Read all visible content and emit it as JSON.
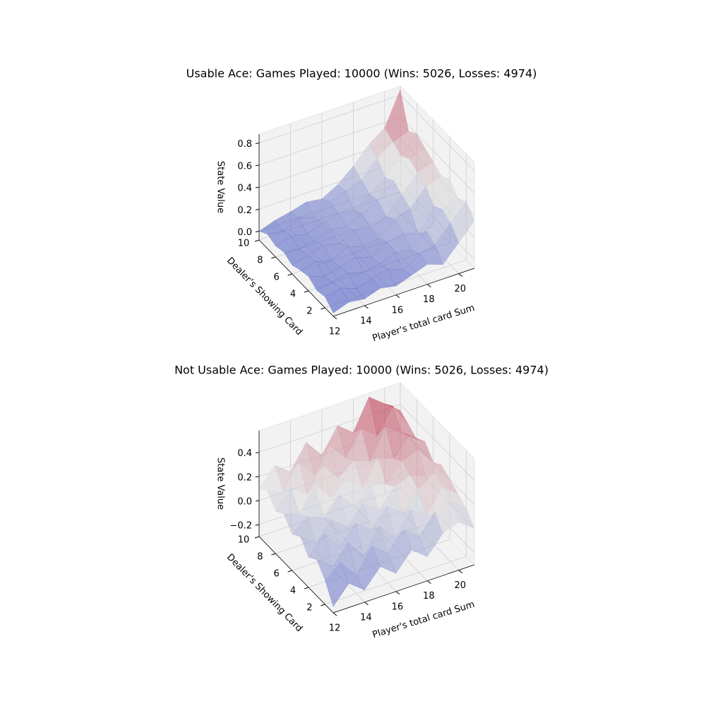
{
  "chart_data": [
    {
      "type": "surface",
      "title": "Usable Ace: Games Played: 10000 (Wins: 5026, Losses: 4974)",
      "xlabel": "Player's total card Sum",
      "ylabel": "Dealer's Showing Card",
      "zlabel": "State Value",
      "x": [
        12,
        13,
        14,
        15,
        16,
        17,
        18,
        19,
        20,
        21
      ],
      "y": [
        1,
        2,
        3,
        4,
        5,
        6,
        7,
        8,
        9,
        10
      ],
      "z": [
        [
          -0.05,
          0.0,
          -0.02,
          0.03,
          0.0,
          0.05,
          0.1,
          0.05,
          0.2,
          0.35
        ],
        [
          0.02,
          0.05,
          0.0,
          0.04,
          0.08,
          0.02,
          0.12,
          0.15,
          0.3,
          0.45
        ],
        [
          0.0,
          0.03,
          0.06,
          0.02,
          0.05,
          0.1,
          0.08,
          0.2,
          0.35,
          0.4
        ],
        [
          0.05,
          0.0,
          0.04,
          0.08,
          0.03,
          0.12,
          0.15,
          0.1,
          0.3,
          0.5
        ],
        [
          0.03,
          0.06,
          0.02,
          0.1,
          0.05,
          0.08,
          0.2,
          0.25,
          0.4,
          0.45
        ],
        [
          0.0,
          0.04,
          0.08,
          0.05,
          0.12,
          0.1,
          0.15,
          0.3,
          0.45,
          0.5
        ],
        [
          0.04,
          0.02,
          0.05,
          0.1,
          0.08,
          0.15,
          0.22,
          0.35,
          0.5,
          0.55
        ],
        [
          0.02,
          0.06,
          0.03,
          0.08,
          0.12,
          0.1,
          0.2,
          0.3,
          0.45,
          0.6
        ],
        [
          0.05,
          0.03,
          0.1,
          0.06,
          0.15,
          0.2,
          0.25,
          0.4,
          0.5,
          0.55
        ],
        [
          0.0,
          0.05,
          0.08,
          0.12,
          0.1,
          0.18,
          0.3,
          0.45,
          0.55,
          0.85
        ]
      ],
      "xlim": [
        12,
        21
      ],
      "ylim": [
        1,
        10
      ],
      "zlim": [
        -0.08,
        0.88
      ],
      "xticks": [
        12,
        14,
        16,
        18,
        20
      ],
      "yticks": [
        2,
        4,
        6,
        8,
        10
      ],
      "zticks": [
        {
          "value": 0,
          "label": "0.0"
        },
        0.2,
        0.4,
        0.6,
        0.8
      ],
      "colormap": "coolwarm",
      "grid": true
    },
    {
      "type": "surface",
      "title": "Not Usable Ace: Games Played: 10000 (Wins: 5026, Losses: 4974)",
      "xlabel": "Player's total card Sum",
      "ylabel": "Dealer's Showing Card",
      "zlabel": "State Value",
      "x": [
        12,
        13,
        14,
        15,
        16,
        17,
        18,
        19,
        20,
        21
      ],
      "y": [
        1,
        2,
        3,
        4,
        5,
        6,
        7,
        8,
        9,
        10
      ],
      "z": [
        [
          -0.25,
          -0.1,
          -0.2,
          -0.05,
          -0.15,
          0.0,
          -0.1,
          0.05,
          0.1,
          0.0
        ],
        [
          -0.1,
          0.0,
          -0.15,
          0.05,
          -0.05,
          0.1,
          0.0,
          0.15,
          0.2,
          0.1
        ],
        [
          0.0,
          -0.1,
          0.05,
          -0.1,
          0.1,
          -0.05,
          0.15,
          0.05,
          0.25,
          0.15
        ],
        [
          -0.05,
          0.1,
          -0.05,
          0.1,
          0.0,
          0.15,
          0.05,
          0.2,
          0.3,
          0.2
        ],
        [
          0.05,
          -0.05,
          0.1,
          0.0,
          0.15,
          0.05,
          0.2,
          0.25,
          0.2,
          0.25
        ],
        [
          0.0,
          0.1,
          0.05,
          0.2,
          0.05,
          0.2,
          0.15,
          0.3,
          0.35,
          0.2
        ],
        [
          0.1,
          0.05,
          0.25,
          0.1,
          0.2,
          0.1,
          0.3,
          0.25,
          0.4,
          0.3
        ],
        [
          0.05,
          0.2,
          0.1,
          0.3,
          0.15,
          0.25,
          0.2,
          0.45,
          0.35,
          0.25
        ],
        [
          0.15,
          0.1,
          0.3,
          0.15,
          0.35,
          0.2,
          0.4,
          0.3,
          0.5,
          0.3
        ],
        [
          0.1,
          0.25,
          0.15,
          0.35,
          0.2,
          0.4,
          0.3,
          0.55,
          0.45,
          0.35
        ]
      ],
      "xlim": [
        12,
        21
      ],
      "ylim": [
        1,
        10
      ],
      "zlim": [
        -0.3,
        0.58
      ],
      "xticks": [
        12,
        14,
        16,
        18,
        20
      ],
      "yticks": [
        2,
        4,
        6,
        8,
        10
      ],
      "zticks": [
        {
          "value": -0.2,
          "label": "−0.2"
        },
        {
          "value": 0,
          "label": "0.0"
        },
        0.2,
        0.4
      ],
      "colormap": "coolwarm",
      "grid": true
    }
  ]
}
